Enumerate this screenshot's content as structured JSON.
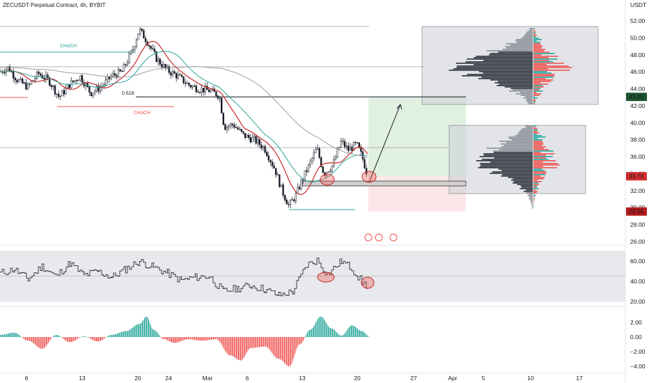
{
  "header": {
    "title": "ZECUSDT Perpetual Contract, 4h, BYBIT",
    "currency": "USDT"
  },
  "chart_data": [
    {
      "type": "candlestick",
      "pane": "price",
      "ylim": [
        26,
        52
      ],
      "y_ticks": [
        "52.00",
        "50.00",
        "48.00",
        "46.00",
        "44.00",
        "42.00",
        "40.00",
        "38.00",
        "36.00",
        "34.00",
        "32.00",
        "30.00",
        "28.00",
        "26.00"
      ],
      "price_badges": [
        {
          "label": "43.05",
          "value": 43.05,
          "color": "#1e5631"
        },
        {
          "label": "33.70",
          "value": 33.7,
          "color": "#d32f2f"
        },
        {
          "label": "29.55",
          "value": 29.55,
          "color": "#b71c1c"
        }
      ],
      "annotations": [
        {
          "text": "CHoCH",
          "color": "#26a69a"
        },
        {
          "text": "CHoCH",
          "color": "#ef5350"
        },
        {
          "text": "0.618",
          "color": "#131722"
        }
      ],
      "levels": [
        51.6,
        46.6,
        43.05,
        38.7,
        33.7,
        29.55
      ],
      "close_path": [
        {
          "x": 0,
          "y": 46.0
        },
        {
          "x": 12,
          "y": 46.5
        },
        {
          "x": 25,
          "y": 45.0
        },
        {
          "x": 40,
          "y": 44.2
        },
        {
          "x": 55,
          "y": 45.8
        },
        {
          "x": 70,
          "y": 45.0
        },
        {
          "x": 85,
          "y": 43.0
        },
        {
          "x": 100,
          "y": 44.5
        },
        {
          "x": 115,
          "y": 45.5
        },
        {
          "x": 130,
          "y": 43.5
        },
        {
          "x": 145,
          "y": 44.2
        },
        {
          "x": 160,
          "y": 45.5
        },
        {
          "x": 175,
          "y": 46.0
        },
        {
          "x": 190,
          "y": 48.5
        },
        {
          "x": 200,
          "y": 51.0
        },
        {
          "x": 212,
          "y": 49.5
        },
        {
          "x": 225,
          "y": 47.5
        },
        {
          "x": 240,
          "y": 46.2
        },
        {
          "x": 255,
          "y": 45.5
        },
        {
          "x": 270,
          "y": 44.5
        },
        {
          "x": 285,
          "y": 44.0
        },
        {
          "x": 300,
          "y": 43.8
        },
        {
          "x": 315,
          "y": 43.2
        },
        {
          "x": 322,
          "y": 39.5
        },
        {
          "x": 335,
          "y": 39.8
        },
        {
          "x": 350,
          "y": 38.5
        },
        {
          "x": 365,
          "y": 38.0
        },
        {
          "x": 380,
          "y": 37.0
        },
        {
          "x": 395,
          "y": 34.5
        },
        {
          "x": 405,
          "y": 32.0
        },
        {
          "x": 415,
          "y": 30.2
        },
        {
          "x": 425,
          "y": 31.5
        },
        {
          "x": 435,
          "y": 33.5
        },
        {
          "x": 445,
          "y": 35.2
        },
        {
          "x": 455,
          "y": 37.0
        },
        {
          "x": 465,
          "y": 34.0
        },
        {
          "x": 478,
          "y": 35.0
        },
        {
          "x": 490,
          "y": 37.8
        },
        {
          "x": 500,
          "y": 36.8
        },
        {
          "x": 512,
          "y": 37.5
        },
        {
          "x": 520,
          "y": 36.0
        },
        {
          "x": 528,
          "y": 33.8
        }
      ]
    },
    {
      "type": "line",
      "pane": "oscillator",
      "ylim": [
        15,
        70
      ],
      "y_ticks": [
        "60.00",
        "40.00",
        "20.00"
      ],
      "band": [
        30,
        60
      ],
      "x": [
        0,
        20,
        40,
        60,
        80,
        100,
        120,
        140,
        160,
        180,
        200,
        220,
        240,
        260,
        280,
        300,
        320,
        340,
        360,
        380,
        400,
        420,
        440,
        455,
        470,
        490,
        505,
        520,
        528
      ],
      "values": [
        48,
        52,
        42,
        55,
        45,
        58,
        46,
        50,
        44,
        52,
        60,
        54,
        48,
        41,
        44,
        45,
        30,
        33,
        36,
        32,
        26,
        30,
        56,
        61,
        47,
        60,
        53,
        39,
        35
      ]
    },
    {
      "type": "bar",
      "pane": "histogram",
      "ylim": [
        -4.5,
        3
      ],
      "y_ticks": [
        "2.00",
        "0.00",
        "−2.00",
        "−4.00"
      ],
      "x": [
        0,
        20,
        40,
        60,
        80,
        100,
        120,
        140,
        160,
        180,
        200,
        210,
        220,
        235,
        250,
        270,
        290,
        310,
        330,
        345,
        360,
        380,
        400,
        415,
        430,
        445,
        460,
        475,
        490,
        505,
        520,
        528
      ],
      "values": [
        0.3,
        0.6,
        -0.5,
        -1.6,
        0.3,
        -0.7,
        0.1,
        -0.6,
        0.3,
        0.8,
        1.8,
        2.8,
        1.0,
        -0.3,
        -0.8,
        -0.3,
        -0.5,
        -0.3,
        -2.5,
        -3.2,
        -1.5,
        -1.3,
        -3.0,
        -4.0,
        -1.0,
        1.0,
        2.8,
        1.2,
        0.2,
        1.6,
        0.8,
        0.2
      ]
    }
  ],
  "x_axis": {
    "ticks": [
      {
        "label": "6",
        "x": 38
      },
      {
        "label": "13",
        "x": 118
      },
      {
        "label": "20",
        "x": 198
      },
      {
        "label": "24",
        "x": 242
      },
      {
        "label": "Mar",
        "x": 298
      },
      {
        "label": "6",
        "x": 355
      },
      {
        "label": "13",
        "x": 434
      },
      {
        "label": "20",
        "x": 513
      },
      {
        "label": "27",
        "x": 594
      },
      {
        "label": "Apr",
        "x": 650
      },
      {
        "label": "5",
        "x": 694
      },
      {
        "label": "10",
        "x": 762
      },
      {
        "label": "17",
        "x": 832
      }
    ]
  },
  "colors": {
    "up": "#26a69a",
    "down": "#ef5350",
    "candle": "#131722",
    "ema_fast": "#c62828",
    "ema_mid": "#26a69a",
    "ema_slow": "#9e9e9e"
  }
}
